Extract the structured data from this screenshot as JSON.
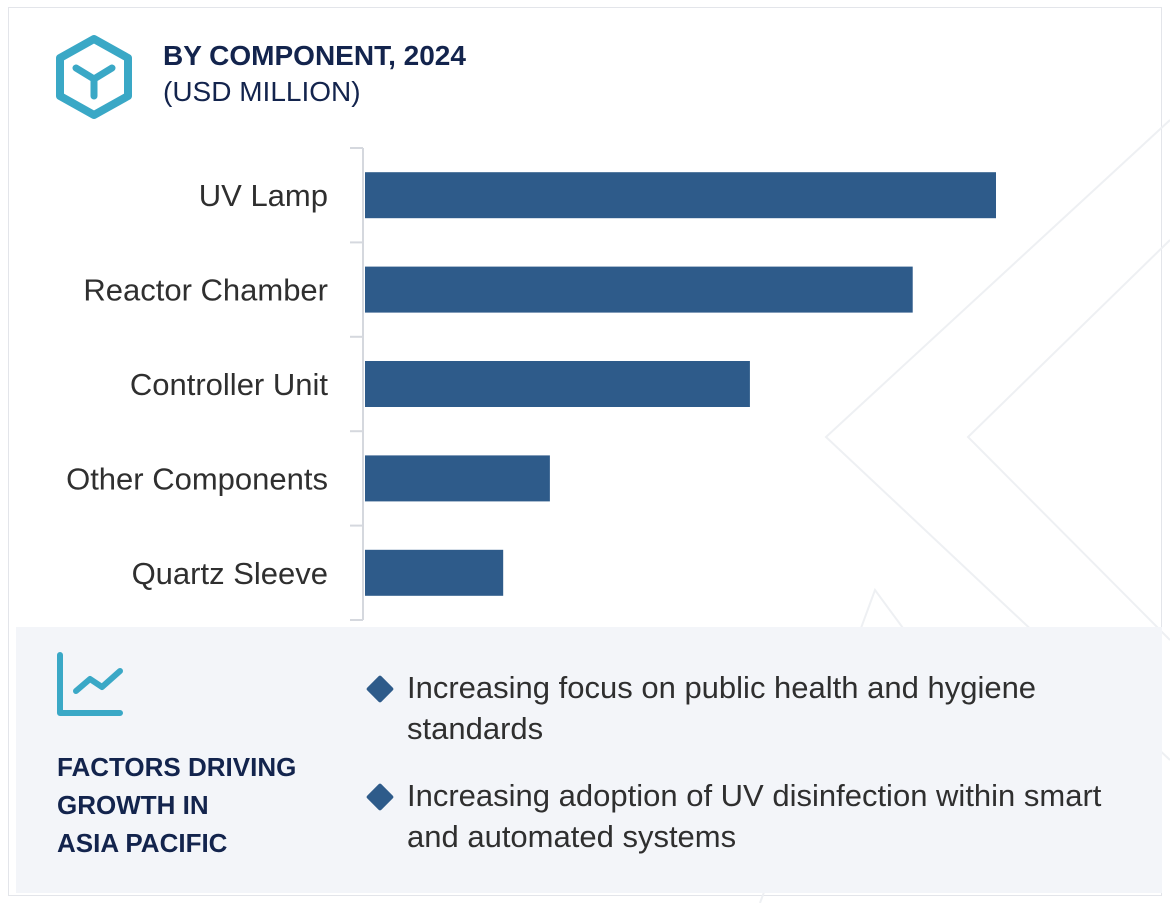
{
  "header": {
    "title": "BY COMPONENT, 2024",
    "subtitle": "(USD MILLION)",
    "icon": "cube-hexagon-icon"
  },
  "colors": {
    "bar": "#2e5b8a",
    "accent": "#3aa8c6",
    "title": "#13244d",
    "panel_bg": "#f3f5f9"
  },
  "chart_data": {
    "type": "bar",
    "orientation": "horizontal",
    "title": "BY COMPONENT, 2024",
    "subtitle": "(USD MILLION)",
    "categories": [
      "UV Lamp",
      "Reactor Chamber",
      "Controller Unit",
      "Other Components",
      "Quartz Sleeve"
    ],
    "values": [
      100,
      86.8,
      61,
      29.3,
      21.9
    ],
    "value_note_unit": "relative (percent of largest bar); no values printed",
    "grid": false
  },
  "factors": {
    "icon": "line-chart-icon",
    "title_lines": [
      "FACTORS DRIVING",
      "GROWTH IN",
      "ASIA PACIFIC"
    ],
    "items": [
      "Increasing focus on public health and hygiene standards",
      "Increasing adoption of UV disinfection within smart and automated systems"
    ]
  }
}
